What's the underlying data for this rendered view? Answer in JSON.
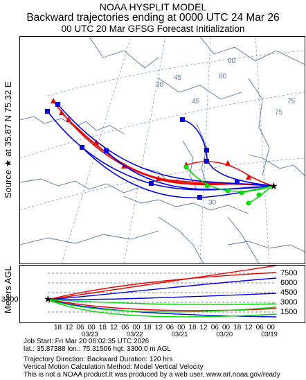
{
  "header": {
    "line1": "NOAA HYSPLIT MODEL",
    "line2": "Backward trajectories ending at 0000 UTC 24 Mar 26",
    "line3": "00 UTC 20 Mar    GFSG  Forecast Initialization"
  },
  "side": {
    "source_label": "Source ★ at   35.87 N   75.32 E",
    "height_axis_label": "Meters AGL"
  },
  "map": {
    "lat_labels": [
      "30",
      "45",
      "60",
      "75"
    ],
    "lon_labels": [
      "30",
      "45",
      "60",
      "75"
    ]
  },
  "chart": {
    "start_height": "3300",
    "y_ticks": [
      "7500",
      "6000",
      "4500",
      "3000",
      "1500"
    ],
    "hour_ticks": [
      "18",
      "12",
      "06",
      "00",
      "18",
      "12",
      "06",
      "00",
      "18",
      "12",
      "06",
      "00",
      "18",
      "12",
      "06",
      "00",
      "18",
      "12",
      "06",
      "00"
    ],
    "date_ticks": [
      "03/23",
      "03/22",
      "03/21",
      "03/20",
      "03/19"
    ]
  },
  "footer": {
    "line1": "Job Start: Fri Mar 20 06:02:35 UTC 2026",
    "line2": "lat.: 35.87388   lon.: 75.31506   hgt: 3300.0 m AGL",
    "line3": "Trajectory Direction: Backward        Duration: 120 hrs",
    "line4": "Vertical Motion Calculation Method: Model Vertical Velocity",
    "line5": "This is not a NOAA product.It was produced by a web user. www.arl.noaa.gov/ready"
  },
  "colors": {
    "series_red": "#ee0000",
    "series_blue": "#0000ee",
    "series_green": "#00dd00",
    "map_lines": "#5577aa",
    "grid": "#7799cc"
  }
}
